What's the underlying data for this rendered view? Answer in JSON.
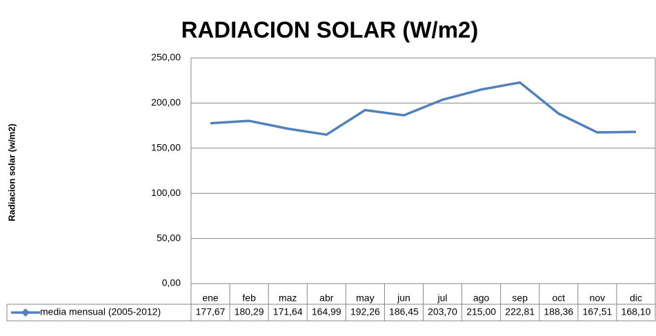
{
  "chart_data": {
    "type": "line",
    "title": "RADIACION SOLAR (W/m2)",
    "y_label": "Radiacion solar (w/m2)",
    "categories": [
      "ene",
      "feb",
      "maz",
      "abr",
      "may",
      "jun",
      "jul",
      "ago",
      "sep",
      "oct",
      "nov",
      "dic"
    ],
    "series": [
      {
        "name": "media mensual (2005-2012)",
        "color": "#4f81bd",
        "values": [
          177.67,
          180.29,
          171.64,
          164.99,
          192.26,
          186.45,
          203.7,
          215.0,
          222.81,
          188.36,
          167.51,
          168.1
        ],
        "value_labels": [
          "177,67",
          "180,29",
          "171,64",
          "164,99",
          "192,26",
          "186,45",
          "203,70",
          "215,00",
          "222,81",
          "188,36",
          "167,51",
          "168,10"
        ]
      }
    ],
    "ylim": [
      0,
      250
    ],
    "yticks": [
      {
        "value": 0,
        "label": "0,00"
      },
      {
        "value": 50,
        "label": "50,00"
      },
      {
        "value": 100,
        "label": "100,00"
      },
      {
        "value": 150,
        "label": "150,00"
      },
      {
        "value": 200,
        "label": "200,00"
      },
      {
        "value": 250,
        "label": "250,00"
      }
    ],
    "grid": true,
    "legend": "bottom"
  }
}
